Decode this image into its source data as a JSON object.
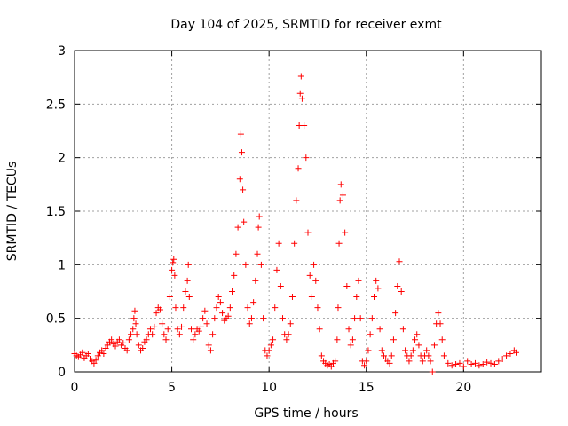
{
  "chart_data": {
    "type": "scatter",
    "title": "Day 104 of 2025, SRMTID for receiver exmt",
    "xlabel": "GPS time / hours",
    "ylabel": "SRMTID / TECUs",
    "xlim": [
      0,
      24
    ],
    "ylim": [
      0,
      3
    ],
    "grid": true,
    "marker": "+",
    "x_ticks": [
      0,
      5,
      10,
      15,
      20
    ],
    "x_tick_labels": [
      "0",
      "5",
      "10",
      "15",
      "20"
    ],
    "y_ticks": [
      0,
      0.5,
      1,
      1.5,
      2,
      2.5,
      3
    ],
    "y_tick_labels": [
      "0",
      "0.5",
      "1",
      "1.5",
      "2",
      "2.5",
      "3"
    ],
    "series": [
      {
        "name": "SRMTID",
        "color": "#ff0000",
        "x": [
          0.0,
          0.1,
          0.2,
          0.3,
          0.4,
          0.5,
          0.6,
          0.7,
          0.8,
          0.9,
          1.0,
          1.1,
          1.2,
          1.3,
          1.4,
          1.5,
          1.6,
          1.7,
          1.8,
          1.9,
          2.0,
          2.1,
          2.2,
          2.3,
          2.4,
          2.5,
          2.6,
          2.7,
          2.8,
          2.9,
          3.0,
          3.05,
          3.1,
          3.15,
          3.2,
          3.3,
          3.4,
          3.5,
          3.6,
          3.7,
          3.8,
          3.9,
          4.0,
          4.1,
          4.2,
          4.3,
          4.4,
          4.5,
          4.6,
          4.7,
          4.8,
          4.9,
          5.0,
          5.05,
          5.1,
          5.15,
          5.2,
          5.3,
          5.4,
          5.5,
          5.6,
          5.7,
          5.8,
          5.85,
          5.9,
          6.0,
          6.1,
          6.2,
          6.3,
          6.4,
          6.5,
          6.6,
          6.7,
          6.8,
          6.9,
          7.0,
          7.1,
          7.2,
          7.3,
          7.4,
          7.5,
          7.6,
          7.7,
          7.8,
          7.9,
          8.0,
          8.1,
          8.2,
          8.3,
          8.4,
          8.5,
          8.55,
          8.6,
          8.65,
          8.7,
          8.8,
          8.9,
          9.0,
          9.1,
          9.2,
          9.3,
          9.4,
          9.45,
          9.5,
          9.6,
          9.7,
          9.8,
          9.9,
          10.0,
          10.1,
          10.2,
          10.3,
          10.4,
          10.5,
          10.6,
          10.7,
          10.8,
          10.9,
          11.0,
          11.1,
          11.2,
          11.3,
          11.4,
          11.5,
          11.55,
          11.6,
          11.65,
          11.7,
          11.8,
          11.9,
          12.0,
          12.1,
          12.2,
          12.3,
          12.4,
          12.5,
          12.6,
          12.7,
          12.8,
          12.9,
          13.0,
          13.1,
          13.2,
          13.3,
          13.4,
          13.5,
          13.55,
          13.6,
          13.65,
          13.7,
          13.8,
          13.9,
          14.0,
          14.1,
          14.2,
          14.3,
          14.4,
          14.5,
          14.6,
          14.7,
          14.8,
          14.9,
          15.0,
          15.1,
          15.2,
          15.3,
          15.4,
          15.5,
          15.6,
          15.7,
          15.8,
          15.9,
          16.0,
          16.1,
          16.2,
          16.3,
          16.4,
          16.5,
          16.6,
          16.7,
          16.8,
          16.9,
          17.0,
          17.1,
          17.2,
          17.3,
          17.4,
          17.5,
          17.6,
          17.7,
          17.8,
          17.9,
          18.0,
          18.1,
          18.2,
          18.3,
          18.4,
          18.5,
          18.6,
          18.7,
          18.8,
          18.9,
          19.0,
          19.2,
          19.4,
          19.6,
          19.8,
          20.0,
          20.2,
          20.4,
          20.6,
          20.8,
          21.0,
          21.2,
          21.4,
          21.6,
          21.8,
          22.0,
          22.2,
          22.4,
          22.6,
          22.7
        ],
        "y": [
          0.17,
          0.15,
          0.14,
          0.16,
          0.18,
          0.13,
          0.15,
          0.17,
          0.12,
          0.1,
          0.08,
          0.11,
          0.15,
          0.18,
          0.2,
          0.17,
          0.22,
          0.25,
          0.28,
          0.3,
          0.26,
          0.24,
          0.28,
          0.3,
          0.25,
          0.27,
          0.22,
          0.2,
          0.3,
          0.35,
          0.4,
          0.5,
          0.57,
          0.45,
          0.35,
          0.25,
          0.2,
          0.22,
          0.28,
          0.3,
          0.35,
          0.4,
          0.35,
          0.42,
          0.55,
          0.6,
          0.58,
          0.45,
          0.35,
          0.3,
          0.4,
          0.7,
          0.95,
          1.02,
          1.05,
          0.9,
          0.6,
          0.4,
          0.35,
          0.42,
          0.6,
          0.75,
          0.85,
          1.0,
          0.7,
          0.4,
          0.3,
          0.35,
          0.4,
          0.38,
          0.42,
          0.5,
          0.57,
          0.45,
          0.25,
          0.2,
          0.35,
          0.5,
          0.6,
          0.7,
          0.65,
          0.55,
          0.48,
          0.5,
          0.52,
          0.6,
          0.75,
          0.9,
          1.1,
          1.35,
          1.8,
          2.22,
          2.05,
          1.7,
          1.4,
          1.0,
          0.6,
          0.45,
          0.5,
          0.65,
          0.85,
          1.1,
          1.35,
          1.45,
          1.0,
          0.5,
          0.2,
          0.15,
          0.2,
          0.25,
          0.3,
          0.6,
          0.95,
          1.2,
          0.8,
          0.5,
          0.35,
          0.3,
          0.35,
          0.45,
          0.7,
          1.2,
          1.6,
          1.9,
          2.3,
          2.6,
          2.76,
          2.55,
          2.3,
          2.0,
          1.3,
          0.9,
          0.7,
          1.0,
          0.85,
          0.6,
          0.4,
          0.15,
          0.1,
          0.08,
          0.06,
          0.07,
          0.05,
          0.08,
          0.1,
          0.3,
          0.6,
          1.2,
          1.6,
          1.75,
          1.65,
          1.3,
          0.8,
          0.4,
          0.25,
          0.3,
          0.5,
          0.7,
          0.85,
          0.5,
          0.1,
          0.06,
          0.1,
          0.2,
          0.35,
          0.5,
          0.7,
          0.85,
          0.78,
          0.4,
          0.2,
          0.15,
          0.12,
          0.1,
          0.08,
          0.15,
          0.3,
          0.55,
          0.8,
          1.03,
          0.75,
          0.4,
          0.2,
          0.15,
          0.1,
          0.15,
          0.2,
          0.3,
          0.35,
          0.25,
          0.15,
          0.1,
          0.15,
          0.2,
          0.15,
          0.1,
          0.0,
          0.25,
          0.45,
          0.55,
          0.45,
          0.3,
          0.15,
          0.08,
          0.06,
          0.07,
          0.08,
          0.05,
          0.1,
          0.07,
          0.08,
          0.06,
          0.07,
          0.09,
          0.08,
          0.07,
          0.1,
          0.12,
          0.15,
          0.17,
          0.2,
          0.18
        ]
      }
    ]
  }
}
